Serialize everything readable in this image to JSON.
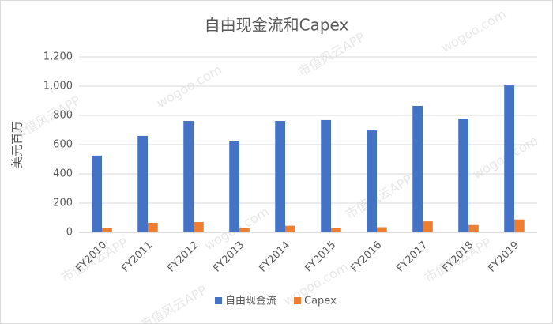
{
  "chart_data": {
    "type": "bar",
    "title": "自由现金流和Capex",
    "y_label": "美元百万",
    "categories": [
      "FY2010",
      "FY2011",
      "FY2012",
      "FY2013",
      "FY2014",
      "FY2015",
      "FY2016",
      "FY2017",
      "FY2018",
      "FY2019"
    ],
    "series": [
      {
        "name": "自由现金流",
        "color": "#4472c4",
        "values": [
          525,
          660,
          762,
          627,
          762,
          768,
          697,
          865,
          778,
          1005
        ]
      },
      {
        "name": "Capex",
        "color": "#ed7d31",
        "values": [
          30,
          65,
          70,
          30,
          45,
          30,
          35,
          75,
          50,
          88
        ]
      }
    ],
    "ylim": [
      0,
      1200
    ],
    "yticks": [
      0,
      200,
      400,
      600,
      800,
      {
        "value": 1000,
        "label": "1,000"
      },
      {
        "value": 1200,
        "label": "1,200"
      }
    ],
    "grid": true,
    "legend": "bottom",
    "watermark": [
      "市值风云APP",
      "wogoo.com"
    ]
  }
}
